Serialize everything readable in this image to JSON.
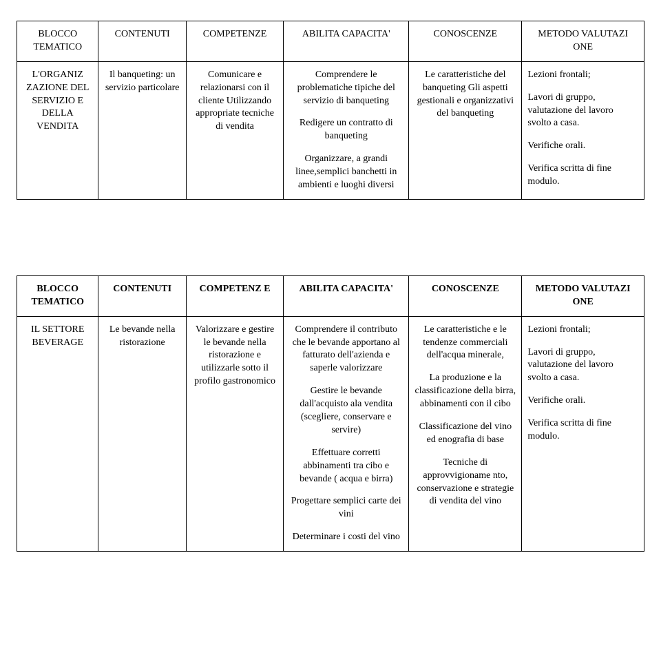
{
  "table1": {
    "headers": {
      "c1": "BLOCCO TEMATICO",
      "c2": "CONTENUTI",
      "c3": "COMPETENZE",
      "c4": "ABILITA CAPACITA'",
      "c5": "CONOSCENZE",
      "c6": "METODO VALUTAZI ONE"
    },
    "row": {
      "c1": "L'ORGANIZ ZAZIONE DEL SERVIZIO E DELLA VENDITA",
      "c2": "Il banqueting: un servizio particolare",
      "c3": "Comunicare e relazionarsi con il cliente Utilizzando appropriate tecniche di vendita",
      "c4_p1": "Comprendere le problematiche tipiche del servizio di banqueting",
      "c4_p2": "Redigere un contratto di banqueting",
      "c4_p3": "Organizzare, a grandi linee,semplici banchetti in ambienti e luoghi diversi",
      "c5": "Le caratteristiche del banqueting Gli aspetti gestionali e organizzativi del banqueting",
      "c6_p1": "Lezioni frontali;",
      "c6_p2": "Lavori di gruppo, valutazione del lavoro svolto a casa.",
      "c6_p3": "Verifiche orali.",
      "c6_p4": "Verifica scritta di fine modulo."
    }
  },
  "table2": {
    "headers": {
      "c1": "BLOCCO TEMATICO",
      "c2": "CONTENUTI",
      "c3": "COMPETENZ E",
      "c4": "ABILITA CAPACITA'",
      "c5": "CONOSCENZE",
      "c6": "METODO VALUTAZI ONE"
    },
    "row": {
      "c1": "IL SETTORE BEVERAGE",
      "c2": "Le bevande nella ristorazione",
      "c3": "Valorizzare e gestire le bevande nella ristorazione e utilizzarle sotto il profilo gastronomico",
      "c4_p1": "Comprendere il contributo che le bevande apportano al fatturato dell'azienda e saperle valorizzare",
      "c4_p2": "Gestire le bevande dall'acquisto ala vendita (scegliere, conservare e servire)",
      "c4_p3": "Effettuare corretti abbinamenti tra cibo e bevande ( acqua e birra)",
      "c4_p4": "Progettare semplici carte dei vini",
      "c4_p5": "Determinare i costi del vino",
      "c5_p1": "Le caratteristiche e le tendenze commerciali dell'acqua minerale,",
      "c5_p2": "La produzione e la classificazione della birra, abbinamenti con il cibo",
      "c5_p3": "Classificazione del vino ed enografia di base",
      "c5_p4": "Tecniche di approvvigioname nto, conservazione e strategie di vendita del vino",
      "c6_p1": "Lezioni frontali;",
      "c6_p2": "Lavori di gruppo, valutazione del lavoro svolto a casa.",
      "c6_p3": "Verifiche orali.",
      "c6_p4": "Verifica scritta di fine modulo."
    }
  }
}
